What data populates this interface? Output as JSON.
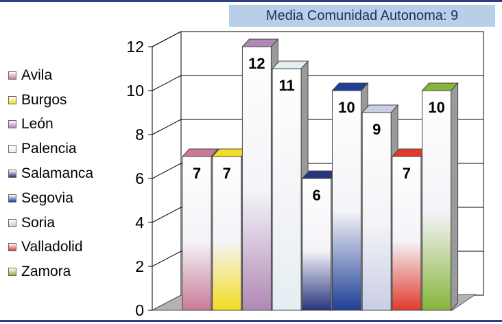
{
  "caption": "Media Comunidad Autonoma: 9",
  "legend": {
    "items": [
      {
        "label": "Avila",
        "color": "#c97a97"
      },
      {
        "label": "Burgos",
        "color": "#f3dc24"
      },
      {
        "label": "León",
        "color": "#b088b6"
      },
      {
        "label": "Palencia",
        "color": "#e4eef2"
      },
      {
        "label": "Salamanca",
        "color": "#27347e"
      },
      {
        "label": "Segovia",
        "color": "#1d3f95"
      },
      {
        "label": "Soria",
        "color": "#c9cde6"
      },
      {
        "label": "Valladolid",
        "color": "#e03a2c"
      },
      {
        "label": "Zamora",
        "color": "#86b53a"
      }
    ]
  },
  "chart_data": {
    "type": "bar",
    "categories": [
      "Avila",
      "Burgos",
      "León",
      "Palencia",
      "Salamanca",
      "Segovia",
      "Soria",
      "Valladolid",
      "Zamora"
    ],
    "values": [
      7,
      7,
      12,
      11,
      6,
      10,
      9,
      7,
      10
    ],
    "ylim": [
      0,
      12
    ],
    "yticks": [
      "0",
      "2",
      "4",
      "6",
      "8",
      "10",
      "12"
    ],
    "grid": true,
    "three_d": true,
    "legend_position": "left",
    "colors": [
      "#c97a97",
      "#f3dc24",
      "#b088b6",
      "#e4eef2",
      "#27347e",
      "#1d3f95",
      "#c9cde6",
      "#e03a2c",
      "#86b53a"
    ],
    "tops": [
      "#ffffff",
      "#ffffff",
      "#ffffff",
      "#ffffff",
      "#ffffff",
      "#ffffff",
      "#ffffff",
      "#ffffff",
      "#ffffff"
    ]
  }
}
